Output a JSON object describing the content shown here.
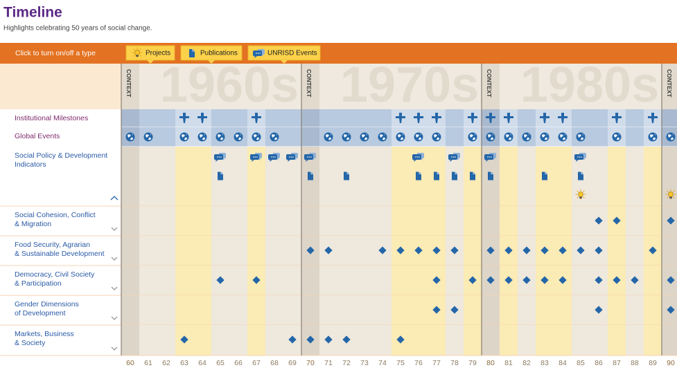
{
  "header": {
    "title": "Timeline",
    "subtitle": "Highlights celebrating 50 years of social change."
  },
  "toolbar": {
    "prompt": "Click to turn on/off a type",
    "buttons": [
      {
        "label": "Projects",
        "icon": "project"
      },
      {
        "label": "Publications",
        "icon": "publication"
      },
      {
        "label": "UNRISD Events",
        "icon": "event"
      }
    ]
  },
  "context_label": "CONTEXT",
  "decades": [
    {
      "label": "1960s",
      "start": 60
    },
    {
      "label": "1970s",
      "start": 70
    },
    {
      "label": "1980s",
      "start": 80
    }
  ],
  "context_years": [
    60,
    70,
    80,
    90
  ],
  "years": [
    60,
    61,
    62,
    63,
    64,
    65,
    66,
    67,
    68,
    69,
    70,
    71,
    72,
    73,
    74,
    75,
    76,
    77,
    78,
    79,
    80,
    81,
    82,
    83,
    84,
    85,
    86,
    87,
    88,
    89,
    90
  ],
  "rows": [
    {
      "label": [
        "Institutional Milestones"
      ],
      "tracks": [
        {
          "icon": "milestone",
          "years": [
            63,
            64,
            67,
            75,
            76,
            77,
            79,
            80,
            81,
            83,
            84,
            87,
            89
          ]
        }
      ]
    },
    {
      "label": [
        "Global Events"
      ],
      "tracks": [
        {
          "icon": "globe",
          "years": [
            60,
            61,
            63,
            64,
            65,
            66,
            67,
            68,
            71,
            72,
            73,
            74,
            75,
            76,
            77,
            79,
            80,
            81,
            82,
            83,
            84,
            85,
            87,
            89,
            90
          ]
        }
      ]
    },
    {
      "label": [
        "Social Policy & Development",
        "Indicators"
      ],
      "expanded": true,
      "tracks": [
        {
          "icon": "event",
          "years": [
            65,
            67,
            68,
            69,
            70,
            76,
            78,
            80,
            85
          ]
        },
        {
          "icon": "publication",
          "years": [
            65,
            70,
            72,
            76,
            77,
            78,
            79,
            80,
            83,
            85
          ]
        },
        {
          "icon": "project",
          "years": [
            85,
            90
          ]
        }
      ]
    },
    {
      "label": [
        "Social Cohesion, Conflict",
        "& Migration"
      ],
      "tracks": [
        {
          "icon": "diamond",
          "years": [
            86,
            87,
            90
          ]
        }
      ]
    },
    {
      "label": [
        "Food Security, Agrarian",
        "& Sustainable Development"
      ],
      "tracks": [
        {
          "icon": "diamond",
          "years": [
            70,
            71,
            74,
            75,
            76,
            77,
            78,
            80,
            81,
            82,
            83,
            84,
            85,
            86,
            89
          ]
        }
      ]
    },
    {
      "label": [
        "Democracy, Civil Society",
        "& Participation"
      ],
      "tracks": [
        {
          "icon": "diamond",
          "years": [
            65,
            67,
            77,
            79,
            80,
            81,
            82,
            83,
            84,
            86,
            87,
            88,
            90
          ]
        }
      ]
    },
    {
      "label": [
        "Gender Dimensions",
        "of Development"
      ],
      "tracks": [
        {
          "icon": "diamond",
          "years": [
            77,
            78,
            86,
            90
          ]
        }
      ]
    },
    {
      "label": [
        "Markets, Business",
        "& Society"
      ],
      "tracks": [
        {
          "icon": "diamond",
          "years": [
            63,
            69,
            70,
            71,
            72,
            75
          ]
        }
      ]
    }
  ]
}
